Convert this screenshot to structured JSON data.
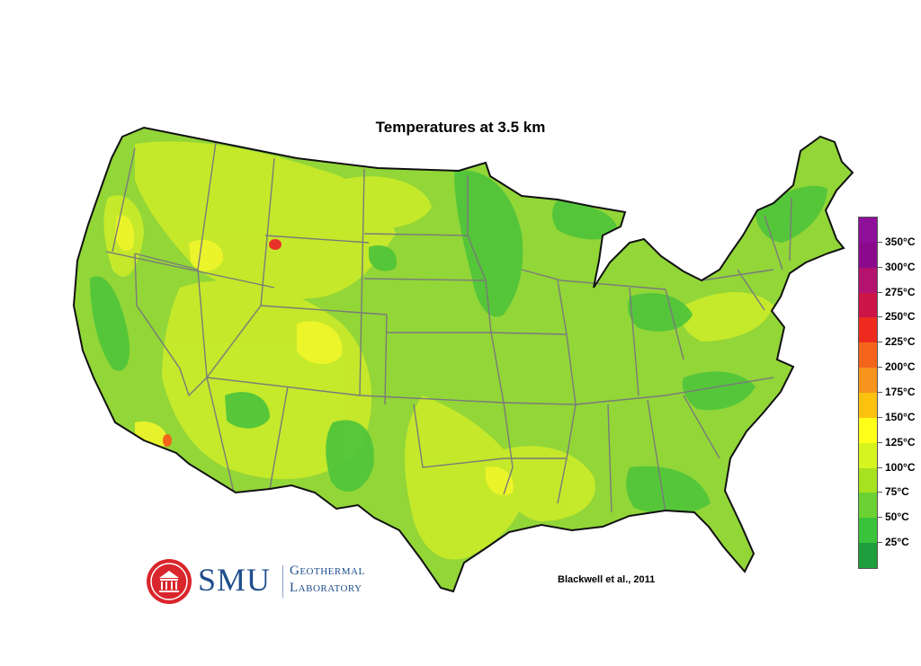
{
  "title": "Temperatures at 3.5 km",
  "credit": "Blackwell et al., 2011",
  "logo": {
    "name": "SMU",
    "line1": "Geothermal",
    "line2": "Laboratory",
    "color": "#1f4e8c",
    "seal_color": "#d9252c"
  },
  "legend": {
    "entries": [
      {
        "label": "350°C",
        "color": "#8b0a8b"
      },
      {
        "label": "300°C",
        "color": "#b3126f"
      },
      {
        "label": "275°C",
        "color": "#cc1447"
      },
      {
        "label": "250°C",
        "color": "#ee2a1e"
      },
      {
        "label": "225°C",
        "color": "#f5641b"
      },
      {
        "label": "200°C",
        "color": "#f7941d"
      },
      {
        "label": "175°C",
        "color": "#fdc20f"
      },
      {
        "label": "150°C",
        "color": "#ffff1a"
      },
      {
        "label": "125°C",
        "color": "#d6f51f"
      },
      {
        "label": "100°C",
        "color": "#a6e21f"
      },
      {
        "label": "75°C",
        "color": "#6cd132"
      },
      {
        "label": "50°C",
        "color": "#3ac33a"
      },
      {
        "label": "25°C",
        "color": "#1e9e3c"
      }
    ],
    "top_color": "#8e0f9a"
  },
  "map": {
    "base_color": "#92d638",
    "warm_color": "#c8ea2a",
    "hot_color": "#f0f52a",
    "cool_color": "#52c53a",
    "hotspot_color": "#e8312a",
    "border_color": "#7a7a7a",
    "outline_color": "#111111"
  }
}
